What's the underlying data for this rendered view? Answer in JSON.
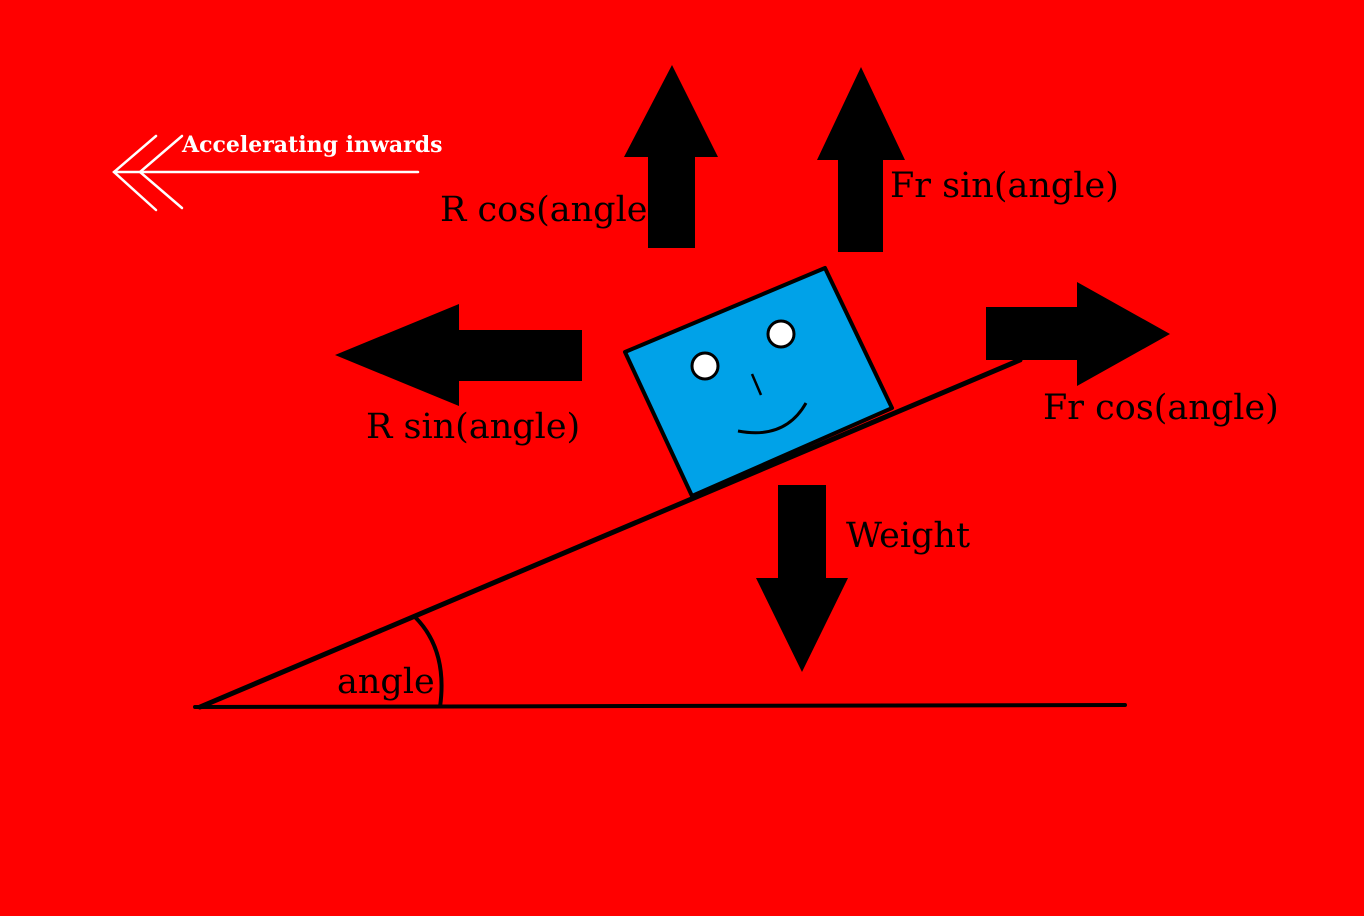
{
  "colors": {
    "background": "#ff0000",
    "block": "#00a2e8",
    "arrows": "#000000",
    "outline": "#000000",
    "accel_arrow": "#ffffff"
  },
  "labels": {
    "accelerating": "Accelerating inwards",
    "r_cos": "R cos(angle)",
    "fr_sin": "Fr sin(angle)",
    "r_sin": "R sin(angle)",
    "fr_cos": "Fr cos(angle)",
    "weight": "Weight",
    "angle": "angle"
  },
  "icons": {
    "block": "smiling-block-icon",
    "accel_arrow": "double-chevron-left-arrow-icon"
  }
}
